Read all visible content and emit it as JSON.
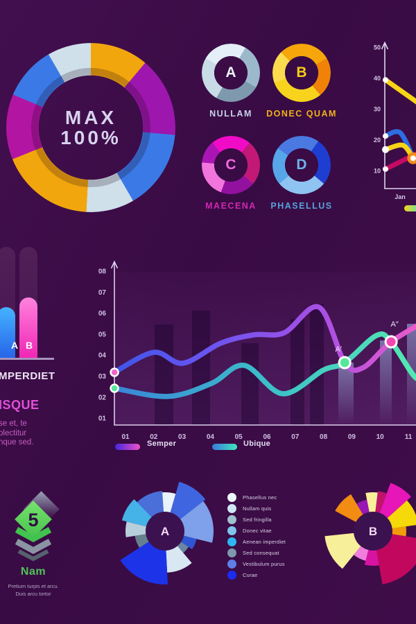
{
  "page": {
    "background": "#3a0b45"
  },
  "left_panel": {
    "heading": "MPERDIET",
    "subheading": "ISQUE",
    "lines": [
      "se et, te",
      "plectitur",
      "nque sed."
    ]
  },
  "nam_panel": {
    "value": "5",
    "label": "Nam",
    "lines": [
      "Pretium turpis et arcu.",
      "Duis arcu tortor"
    ],
    "chevron_colors": [
      "#42c24e",
      "#8b94a2",
      "#57616e"
    ]
  },
  "rose_legend": [
    {
      "color": "#eef7fc",
      "label": "Phasellus nec"
    },
    {
      "color": "#cfe6f5",
      "label": "Nullam quis"
    },
    {
      "color": "#9fc0d0",
      "label": "Sed fringilla"
    },
    {
      "color": "#7fc4ea",
      "label": "Donec vitae"
    },
    {
      "color": "#2eb6f2",
      "label": "Aenean imperdiet"
    },
    {
      "color": "#7e98ac",
      "label": "Sed consequat"
    },
    {
      "color": "#5f7fe8",
      "label": "Vestibulum purus"
    },
    {
      "color": "#1b2cf0",
      "label": "Curae"
    }
  ],
  "chart_data": [
    {
      "type": "donut",
      "name": "max-gauge",
      "center_line1": "MAX",
      "center_line2": "100%",
      "segments": [
        [
          "#f2a60d",
          0,
          40
        ],
        [
          "#9d16ad",
          40,
          95
        ],
        [
          "#3b79e6",
          95,
          150
        ],
        [
          "#cfe0ea",
          150,
          183
        ],
        [
          "#f2a60d",
          183,
          248
        ],
        [
          "#b315a3",
          248,
          293
        ],
        [
          "#3b79e6",
          293,
          330
        ],
        [
          "#cfe0ea",
          330,
          360
        ]
      ]
    },
    {
      "type": "donut",
      "name": "mini-a",
      "letter": "A",
      "caption": "NULLAM",
      "letter_color": "#ecf2f8",
      "caption_color": "#c6d4e8",
      "segments": [
        [
          "#e3eef6",
          0,
          30
        ],
        [
          "#9cb9cc",
          30,
          120
        ],
        [
          "#7e99ad",
          120,
          210
        ],
        [
          "#c8dbe7",
          210,
          300
        ],
        [
          "#e3eef6",
          300,
          360
        ]
      ]
    },
    {
      "type": "donut",
      "name": "mini-b",
      "letter": "B",
      "caption": "DONEC QUAM",
      "letter_color": "#f6cf16",
      "caption_color": "#f0b219",
      "segments": [
        [
          "#f6a60b",
          0,
          60
        ],
        [
          "#f08208",
          60,
          140
        ],
        [
          "#f8d31d",
          140,
          250
        ],
        [
          "#fbdc4e",
          250,
          315
        ],
        [
          "#f6a60b",
          315,
          360
        ]
      ]
    },
    {
      "type": "donut",
      "name": "mini-c",
      "letter": "C",
      "caption": "MAECENA",
      "letter_color": "#f06adc",
      "caption_color": "#cf28b0",
      "segments": [
        [
          "#f00cc6",
          0,
          40
        ],
        [
          "#c21977",
          40,
          130
        ],
        [
          "#93119f",
          130,
          200
        ],
        [
          "#f175dd",
          200,
          275
        ],
        [
          "#ab15b5",
          275,
          320
        ],
        [
          "#f00cc6",
          320,
          360
        ]
      ]
    },
    {
      "type": "donut",
      "name": "mini-d",
      "letter": "D",
      "caption": "PHASELLUS",
      "letter_color": "#6fb2ec",
      "caption_color": "#56a2da",
      "segments": [
        [
          "#4a79e2",
          0,
          35
        ],
        [
          "#1e3ed2",
          35,
          130
        ],
        [
          "#8fc3f2",
          130,
          230
        ],
        [
          "#57a6e9",
          230,
          305
        ],
        [
          "#4a79e2",
          305,
          360
        ]
      ]
    },
    {
      "type": "line",
      "name": "month-trends",
      "y_ticks": [
        50,
        40,
        30,
        20,
        10
      ],
      "x_labels": [
        "Jan"
      ],
      "series": [
        {
          "color": "#f7d516",
          "points": [
            [
              0.5,
              39.5
            ],
            [
              1.85,
              30.5
            ]
          ]
        },
        {
          "color": "#c40a62",
          "points": [
            [
              0.5,
              10.6
            ],
            [
              1.7,
              16.2
            ]
          ]
        },
        {
          "color": "#2e6de2",
          "points": [
            [
              0.5,
              21.3
            ],
            [
              1.0,
              22.4
            ],
            [
              1.45,
              14.2
            ]
          ]
        },
        {
          "color": "#f7d516",
          "points": [
            [
              0.5,
              16.9
            ],
            [
              1.1,
              18.3
            ],
            [
              1.45,
              13.9
            ]
          ]
        }
      ],
      "marker": {
        "x": 1.45,
        "y": 14.1,
        "color": "#f28a1a"
      },
      "legend_gradient": [
        "#f7d516",
        "#52e0c8"
      ]
    },
    {
      "type": "bar",
      "name": "ab-bars",
      "categories": [
        "A",
        "B"
      ],
      "values": [
        46,
        55
      ],
      "max": 100,
      "bar_gradients": [
        [
          "#45b2ff",
          "#2563e8"
        ],
        [
          "#ff82dd",
          "#f024b4"
        ]
      ]
    },
    {
      "type": "line",
      "name": "semper-ubique",
      "y_ticks": [
        "08",
        "07",
        "06",
        "05",
        "04",
        "03",
        "02",
        "01"
      ],
      "x_ticks": [
        "01",
        "02",
        "03",
        "04",
        "05",
        "06",
        "07",
        "08",
        "09",
        "10",
        "11"
      ],
      "series": [
        {
          "name": "Semper",
          "gradient": [
            "#3f55e8",
            "#6e55f0",
            "#a94fe4",
            "#f25cc8"
          ],
          "points": [
            [
              0.61,
              3.18
            ],
            [
              2.0,
              4.13
            ],
            [
              3.03,
              3.61
            ],
            [
              4.36,
              4.56
            ],
            [
              5.53,
              4.96
            ],
            [
              6.61,
              5.06
            ],
            [
              7.84,
              6.28
            ],
            [
              8.75,
              3.64
            ],
            [
              9.4,
              3.4
            ],
            [
              10.39,
              4.63
            ],
            [
              11.56,
              5.59
            ]
          ],
          "start_marker": {
            "x": 0.61,
            "y": 3.18,
            "color": "#f565c8"
          }
        },
        {
          "name": "Ubique",
          "gradient": [
            "#3a86d8",
            "#3cc0c8",
            "#55ecb0"
          ],
          "points": [
            [
              0.61,
              2.42
            ],
            [
              2.5,
              2.03
            ],
            [
              4.04,
              2.65
            ],
            [
              5.19,
              3.51
            ],
            [
              6.56,
              2.16
            ],
            [
              7.99,
              3.28
            ],
            [
              8.75,
              3.64
            ],
            [
              9.87,
              4.93
            ],
            [
              10.39,
              4.63
            ],
            [
              11.27,
              2.91
            ],
            [
              11.66,
              3.28
            ]
          ],
          "start_marker": {
            "x": 0.61,
            "y": 2.42,
            "color": "#55e89a"
          }
        }
      ],
      "annotations": [
        {
          "text": "A′",
          "x": 8.75,
          "y": 3.64,
          "dot_color": "#55e89a"
        },
        {
          "text": "A″",
          "x": 10.39,
          "y": 4.63,
          "dot_color": "#f545b0"
        }
      ],
      "legend": [
        {
          "label": "Semper",
          "gradient": [
            "#4428e0",
            "#f050c8"
          ]
        },
        {
          "label": "Ubique",
          "gradient": [
            "#3a7ae0",
            "#3fe8b8"
          ]
        }
      ]
    },
    {
      "type": "rose",
      "name": "rose-a",
      "letter": "A",
      "letter_color": "#f2dcf2",
      "wedges": [
        [
          -58,
          -4,
          58,
          "#4b6fd8"
        ],
        [
          -4,
          16,
          56,
          "#e9f3fa"
        ],
        [
          16,
          52,
          74,
          "#3f66e0"
        ],
        [
          52,
          104,
          70,
          "#7fa0ea"
        ],
        [
          104,
          124,
          47,
          "#2f55d4"
        ],
        [
          124,
          140,
          41,
          "#6b86a0"
        ],
        [
          140,
          177,
          60,
          "#d9e7f2"
        ],
        [
          177,
          237,
          77,
          "#1c33e8"
        ],
        [
          237,
          261,
          44,
          "#66808f"
        ],
        [
          261,
          284,
          57,
          "#b7cedb"
        ],
        [
          284,
          316,
          64,
          "#45b2e8"
        ]
      ]
    },
    {
      "type": "rose",
      "name": "rose-b",
      "letter": "B",
      "letter_color": "#f2dcf2",
      "wedges": [
        [
          -62,
          -31,
          62,
          "#f28c12"
        ],
        [
          -31,
          -11,
          46,
          "#9718b4"
        ],
        [
          -11,
          7,
          56,
          "#f8ef9a"
        ],
        [
          7,
          20,
          58,
          "#c01468"
        ],
        [
          20,
          48,
          74,
          "#e616b8"
        ],
        [
          48,
          82,
          66,
          "#f5d908"
        ],
        [
          82,
          99,
          48,
          "#f29c0a"
        ],
        [
          99,
          170,
          78,
          "#c1085e"
        ],
        [
          170,
          194,
          50,
          "#d714a2"
        ],
        [
          194,
          219,
          44,
          "#f07ede"
        ],
        [
          219,
          264,
          70,
          "#f8ef9a"
        ]
      ]
    }
  ]
}
